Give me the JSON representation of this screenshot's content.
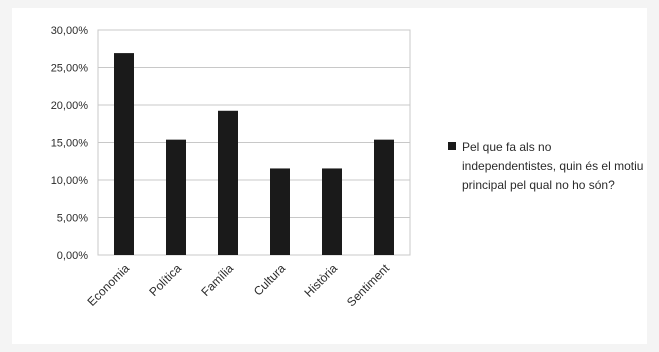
{
  "chart_data": {
    "type": "bar",
    "categories": [
      "Economia",
      "Política",
      "Família",
      "Cultura",
      "Història",
      "Sentiment"
    ],
    "series": [
      {
        "name": "Pel que fa als no independentistes, quin és el motiu principal pel qual no ho són?",
        "values": [
          26.92,
          15.38,
          19.23,
          11.54,
          11.54,
          15.38
        ]
      }
    ],
    "y_ticks": [
      "0,00%",
      "5,00%",
      "10,00%",
      "15,00%",
      "20,00%",
      "25,00%",
      "30,00%"
    ],
    "ylim": [
      0,
      30
    ],
    "grid": true,
    "legend_position": "right",
    "bar_color": "#1a1a1a",
    "grid_color": "#c8c8c8"
  }
}
